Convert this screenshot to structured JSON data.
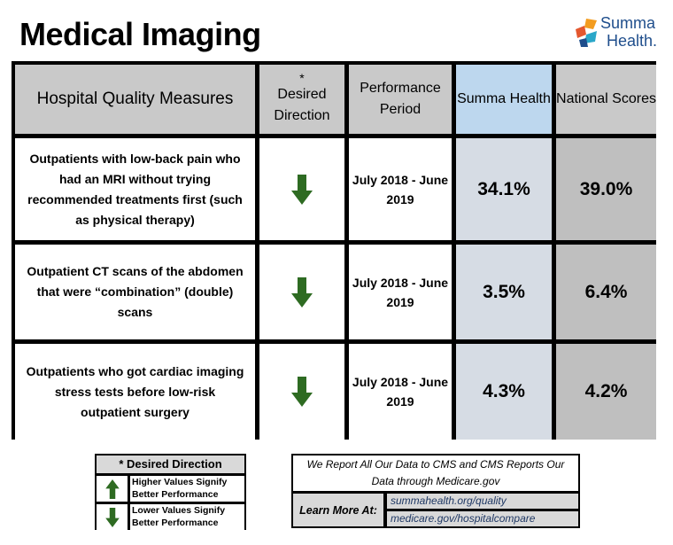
{
  "title": "Medical Imaging",
  "logo": {
    "line1": "Summa",
    "line2": "Health."
  },
  "table": {
    "headers": {
      "measure": "Hospital Quality Measures",
      "direction_star": "*",
      "direction": "Desired Direction",
      "period": "Performance Period",
      "summa": "Summa Health",
      "national": "National Scores"
    },
    "rows": [
      {
        "measure": "Outpatients with low-back pain who had an MRI without trying recommended treatments first (such as physical therapy)",
        "direction": "down",
        "period": "July 2018 - June 2019",
        "summa": "34.1%",
        "national": "39.0%"
      },
      {
        "measure": "Outpatient CT scans of the abdomen that were “combination” (double) scans",
        "direction": "down",
        "period": "July 2018 - June 2019",
        "summa": "3.5%",
        "national": "6.4%"
      },
      {
        "measure": "Outpatients who got cardiac imaging stress tests before low-risk outpatient surgery",
        "direction": "down",
        "period": "July 2018 - June 2019",
        "summa": "4.3%",
        "national": "4.2%"
      }
    ]
  },
  "legend": {
    "title": "* Desired Direction",
    "higher": "Higher Values Signify Better Performance",
    "lower": "Lower Values Signify Better Performance"
  },
  "info": {
    "statement": "We Report All Our Data to CMS and CMS Reports Our Data through Medicare.gov",
    "learn_more": "Learn More At:",
    "links": [
      "summahealth.org/quality",
      "medicare.gov/hospitalcompare"
    ]
  },
  "colors": {
    "arrow": "#2e6b22",
    "summa_header": "#bdd7ee",
    "summa_cells": "#d6dce4",
    "national_cells": "#bfbfbf"
  }
}
